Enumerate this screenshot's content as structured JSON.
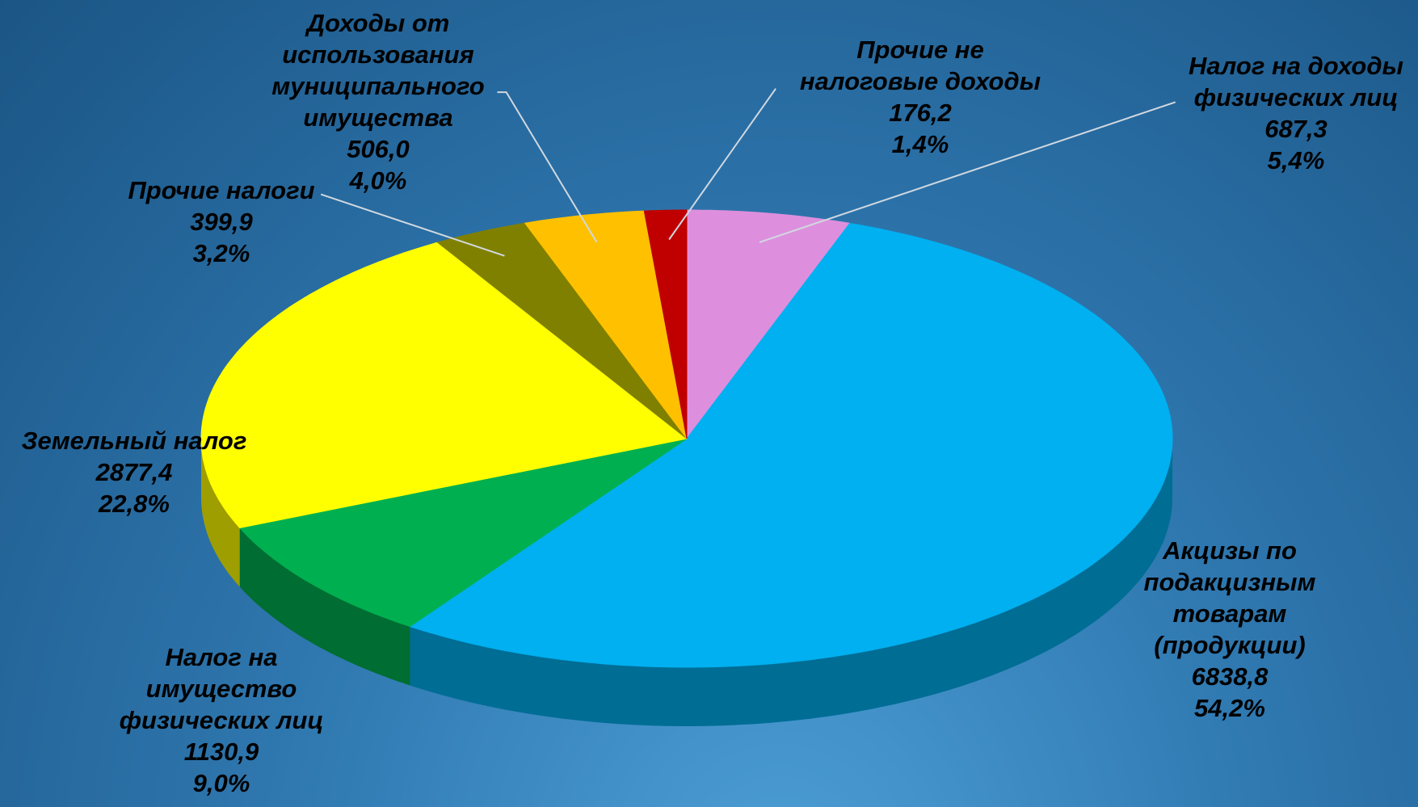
{
  "chart_data": {
    "type": "pie3d",
    "categories": [
      "Налог на доходы физических лиц",
      "Акцизы по подакцизным товарам (продукции)",
      "Налог на имущество физических лиц",
      "Земельный налог",
      "Прочие налоги",
      "Доходы от использования муниципального имущества",
      "Прочие не налоговые доходы"
    ],
    "values": [
      687.3,
      6838.8,
      1130.9,
      2877.4,
      399.9,
      506.0,
      176.2
    ],
    "value_labels": [
      "687,3",
      "6838,8",
      "1130,9",
      "2877,4",
      "399,9",
      "506,0",
      "176,2"
    ],
    "percents": [
      5.4,
      54.2,
      9.0,
      22.8,
      3.2,
      4.0,
      1.4
    ],
    "percent_labels": [
      "5,4%",
      "54,2%",
      "9,0%",
      "22,8%",
      "3,2%",
      "4,0%",
      "1,4%"
    ],
    "colors": [
      "#dd8fdd",
      "#00b0f0",
      "#00b050",
      "#ffff00",
      "#808000",
      "#ffc000",
      "#c00000"
    ]
  }
}
